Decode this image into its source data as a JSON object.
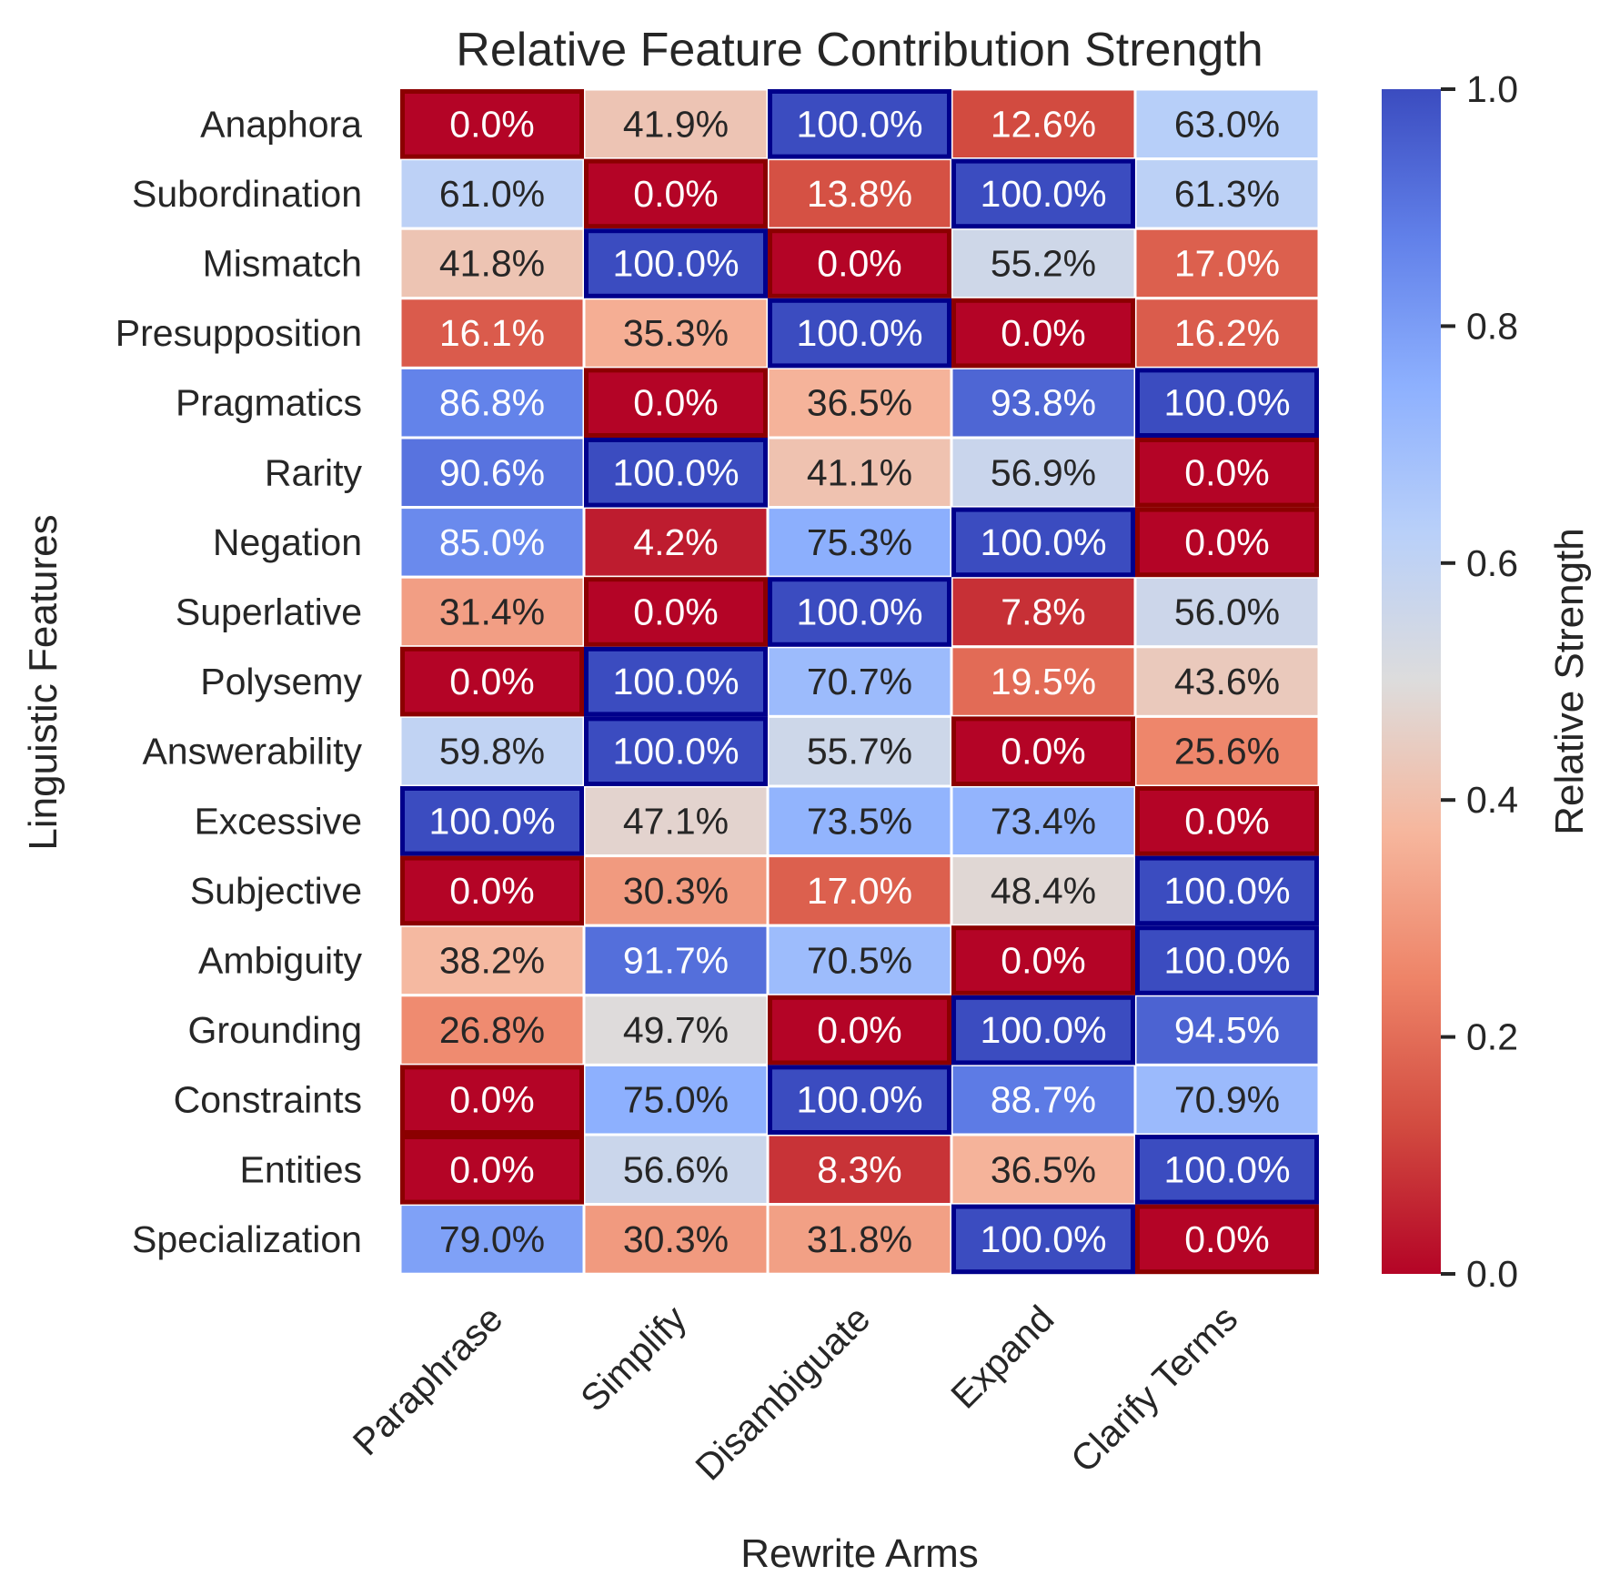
{
  "chart_data": {
    "type": "heatmap",
    "title": "Relative Feature Contribution Strength",
    "xlabel": "Rewrite Arms",
    "ylabel": "Linguistic Features",
    "colorbar_label": "Relative Strength",
    "colorbar_ticks": [
      "0.0",
      "0.2",
      "0.4",
      "0.6",
      "0.8",
      "1.0"
    ],
    "vmin": 0.0,
    "vmax": 1.0,
    "colormap": "coolwarm_r",
    "x_categories": [
      "Paraphrase",
      "Simplify",
      "Disambiguate",
      "Expand",
      "Clarify Terms"
    ],
    "y_categories": [
      "Anaphora",
      "Subordination",
      "Mismatch",
      "Presupposition",
      "Pragmatics",
      "Rarity",
      "Negation",
      "Superlative",
      "Polysemy",
      "Answerability",
      "Excessive",
      "Subjective",
      "Ambiguity",
      "Grounding",
      "Constraints",
      "Entities",
      "Specialization"
    ],
    "values": [
      [
        0.0,
        41.9,
        100.0,
        12.6,
        63.0
      ],
      [
        61.0,
        0.0,
        13.8,
        100.0,
        61.3
      ],
      [
        41.8,
        100.0,
        0.0,
        55.2,
        17.0
      ],
      [
        16.1,
        35.3,
        100.0,
        0.0,
        16.2
      ],
      [
        86.8,
        0.0,
        36.5,
        93.8,
        100.0
      ],
      [
        90.6,
        100.0,
        41.1,
        56.9,
        0.0
      ],
      [
        85.0,
        4.2,
        75.3,
        100.0,
        0.0
      ],
      [
        31.4,
        0.0,
        100.0,
        7.8,
        56.0
      ],
      [
        0.0,
        100.0,
        70.7,
        19.5,
        43.6
      ],
      [
        59.8,
        100.0,
        55.7,
        0.0,
        25.6
      ],
      [
        100.0,
        47.1,
        73.5,
        73.4,
        0.0
      ],
      [
        0.0,
        30.3,
        17.0,
        48.4,
        100.0
      ],
      [
        38.2,
        91.7,
        70.5,
        0.0,
        100.0
      ],
      [
        26.8,
        49.7,
        0.0,
        100.0,
        94.5
      ],
      [
        0.0,
        75.0,
        100.0,
        88.7,
        70.9
      ],
      [
        0.0,
        56.6,
        8.3,
        36.5,
        100.0
      ],
      [
        79.0,
        30.3,
        31.8,
        100.0,
        0.0
      ]
    ],
    "cell_labels": [
      [
        "0.0%",
        "41.9%",
        "100.0%",
        "12.6%",
        "63.0%"
      ],
      [
        "61.0%",
        "0.0%",
        "13.8%",
        "100.0%",
        "61.3%"
      ],
      [
        "41.8%",
        "100.0%",
        "0.0%",
        "55.2%",
        "17.0%"
      ],
      [
        "16.1%",
        "35.3%",
        "100.0%",
        "0.0%",
        "16.2%"
      ],
      [
        "86.8%",
        "0.0%",
        "36.5%",
        "93.8%",
        "100.0%"
      ],
      [
        "90.6%",
        "100.0%",
        "41.1%",
        "56.9%",
        "0.0%"
      ],
      [
        "85.0%",
        "4.2%",
        "75.3%",
        "100.0%",
        "0.0%"
      ],
      [
        "31.4%",
        "0.0%",
        "100.0%",
        "7.8%",
        "56.0%"
      ],
      [
        "0.0%",
        "100.0%",
        "70.7%",
        "19.5%",
        "43.6%"
      ],
      [
        "59.8%",
        "100.0%",
        "55.7%",
        "0.0%",
        "25.6%"
      ],
      [
        "100.0%",
        "47.1%",
        "73.5%",
        "73.4%",
        "0.0%"
      ],
      [
        "0.0%",
        "30.3%",
        "17.0%",
        "48.4%",
        "100.0%"
      ],
      [
        "38.2%",
        "91.7%",
        "70.5%",
        "0.0%",
        "100.0%"
      ],
      [
        "26.8%",
        "49.7%",
        "0.0%",
        "100.0%",
        "94.5%"
      ],
      [
        "0.0%",
        "75.0%",
        "100.0%",
        "88.7%",
        "70.9%"
      ],
      [
        "0.0%",
        "56.6%",
        "8.3%",
        "36.5%",
        "100.0%"
      ],
      [
        "79.0%",
        "30.3%",
        "31.8%",
        "100.0%",
        "0.0%"
      ]
    ],
    "highlight": {
      "max_outline_color": "#00008b",
      "min_outline_color": "#8b0000"
    }
  }
}
